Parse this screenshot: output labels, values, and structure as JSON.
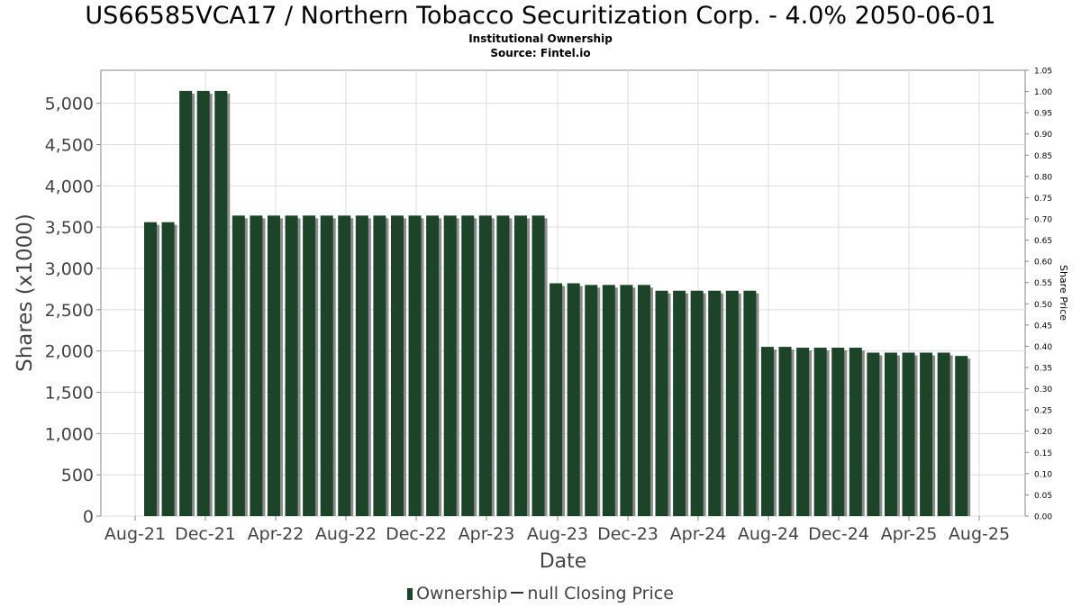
{
  "title": "US66585VCA17 / Northern Tobacco Securitization Corp. - 4.0% 2050-06-01",
  "subtitle": "Institutional Ownership",
  "source": "Source: Fintel.io",
  "legend": {
    "ownership": "Ownership",
    "price": "null Closing Price"
  },
  "colors": {
    "bar": "#1c4428",
    "bar_shadow": "#8c8c8c",
    "grid": "#dddddd"
  },
  "chart_data": {
    "type": "bar",
    "xlabel": "Date",
    "ylabel": "Shares (x1000)",
    "y2label": "Share Price",
    "ylim": [
      0,
      5400
    ],
    "y2lim": [
      0,
      1.05
    ],
    "grid": true,
    "legend_position": "bottom",
    "y_ticks": [
      "0",
      "500",
      "1,000",
      "1,500",
      "2,000",
      "2,500",
      "3,000",
      "3,500",
      "4,000",
      "4,500",
      "5,000"
    ],
    "y2_ticks": [
      "0.00",
      "0.05",
      "0.10",
      "0.15",
      "0.20",
      "0.25",
      "0.30",
      "0.35",
      "0.40",
      "0.45",
      "0.50",
      "0.55",
      "0.60",
      "0.65",
      "0.70",
      "0.75",
      "0.80",
      "0.85",
      "0.90",
      "0.95",
      "1.00",
      "1.05"
    ],
    "x_ticks": [
      "Aug-21",
      "Dec-21",
      "Apr-22",
      "Aug-22",
      "Dec-22",
      "Apr-23",
      "Aug-23",
      "Dec-23",
      "Apr-24",
      "Aug-24",
      "Dec-24",
      "Apr-25",
      "Aug-25"
    ],
    "series": [
      {
        "name": "Ownership",
        "values": [
          3560,
          3560,
          5150,
          5150,
          5150,
          3640,
          3640,
          3640,
          3640,
          3640,
          3640,
          3640,
          3640,
          3640,
          3640,
          3640,
          3640,
          3640,
          3640,
          3640,
          3640,
          3640,
          3640,
          2820,
          2820,
          2800,
          2800,
          2800,
          2800,
          2730,
          2730,
          2730,
          2730,
          2730,
          2730,
          2050,
          2050,
          2040,
          2040,
          2040,
          2040,
          1980,
          1980,
          1980,
          1980,
          1980,
          1940
        ]
      }
    ]
  }
}
